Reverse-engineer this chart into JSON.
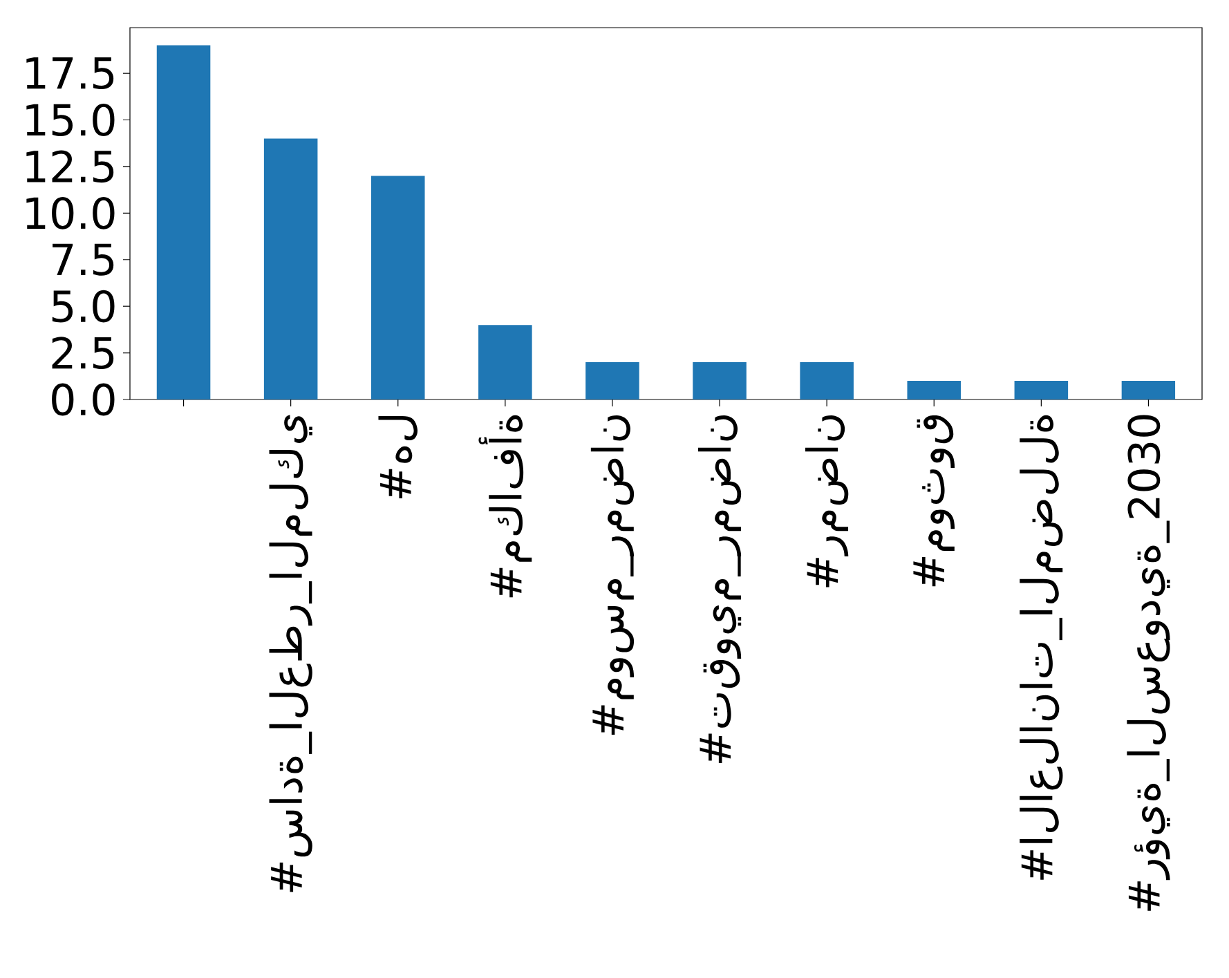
{
  "chart_data": {
    "type": "bar",
    "categories": [
      null,
      "#سادة_العطر_الملكي",
      "#هل",
      "#مكافأة",
      "#موسم_رمضان",
      "#تقويم_رمضان",
      "#رمضان",
      "#موثوق",
      "#الاعلانات_المضللة",
      "#رؤية_السعودية_2030"
    ],
    "values": [
      19,
      14,
      12,
      4,
      2,
      2,
      2,
      1,
      1,
      1
    ],
    "color": "#1f77b4",
    "ylim": [
      0,
      19.95
    ],
    "yticks": [
      {
        "value": 0,
        "label": "0.0"
      },
      2.5,
      {
        "value": 5,
        "label": "5.0"
      },
      7.5,
      {
        "value": 10,
        "label": "10.0"
      },
      12.5,
      {
        "value": 15,
        "label": "15.0"
      },
      17.5
    ],
    "grid": false
  }
}
